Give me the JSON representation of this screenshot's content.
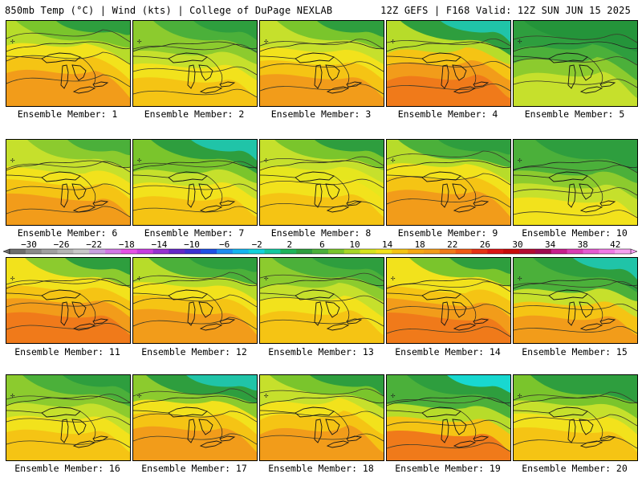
{
  "header": {
    "left": "850mb Temp (°C) | Wind (kts) | College of DuPage NEXLAB",
    "right": "12Z GEFS | F168 Valid: 12Z SUN JUN 15 2025"
  },
  "caption_prefix": "Ensemble Member:",
  "members": [
    {
      "label": "Ensemble Member: 1",
      "palette": [
        "#f29c1a",
        "#f5c414",
        "#f2e21c",
        "#b7dc2a",
        "#7ac52c",
        "#2e9e3e"
      ]
    },
    {
      "label": "Ensemble Member: 2",
      "palette": [
        "#f5c414",
        "#f2e21c",
        "#c6e02c",
        "#8ccb2e",
        "#4bb03a",
        "#2e9e3e"
      ]
    },
    {
      "label": "Ensemble Member: 3",
      "palette": [
        "#f29c1a",
        "#f5c414",
        "#f2e21c",
        "#c6e02c",
        "#7ac52c",
        "#2e9e3e"
      ]
    },
    {
      "label": "Ensemble Member: 4",
      "palette": [
        "#f07a1a",
        "#f29c1a",
        "#f5c414",
        "#b7dc2a",
        "#2e9e3e",
        "#20c4a8"
      ]
    },
    {
      "label": "Ensemble Member: 5",
      "palette": [
        "#c6e02c",
        "#8ccb2e",
        "#4bb03a",
        "#2e9e3e",
        "#24943a",
        "#24943a"
      ]
    },
    {
      "label": "Ensemble Member: 6",
      "palette": [
        "#f29c1a",
        "#f5c414",
        "#f2e21c",
        "#c6e02c",
        "#8ccb2e",
        "#4bb03a"
      ]
    },
    {
      "label": "Ensemble Member: 7",
      "palette": [
        "#f5c414",
        "#f2e21c",
        "#c6e02c",
        "#7ac52c",
        "#2e9e3e",
        "#20c4a8"
      ]
    },
    {
      "label": "Ensemble Member: 8",
      "palette": [
        "#f5c414",
        "#f2e21c",
        "#e6e61e",
        "#c6e02c",
        "#7ac52c",
        "#2e9e3e"
      ]
    },
    {
      "label": "Ensemble Member: 9",
      "palette": [
        "#f29c1a",
        "#f5c414",
        "#f2e21c",
        "#b7dc2a",
        "#4bb03a",
        "#2e9e3e"
      ]
    },
    {
      "label": "Ensemble Member: 10",
      "palette": [
        "#f2e21c",
        "#c6e02c",
        "#8ccb2e",
        "#4bb03a",
        "#2e9e3e",
        "#2e9e3e"
      ]
    },
    {
      "label": "Ensemble Member: 11",
      "palette": [
        "#f07a1a",
        "#f29c1a",
        "#f5c414",
        "#f2e21c",
        "#8ccb2e",
        "#2e9e3e"
      ]
    },
    {
      "label": "Ensemble Member: 12",
      "palette": [
        "#f29c1a",
        "#f5c414",
        "#f2e21c",
        "#b7dc2a",
        "#4bb03a",
        "#2e9e3e"
      ]
    },
    {
      "label": "Ensemble Member: 13",
      "palette": [
        "#f5c414",
        "#f2e21c",
        "#c6e02c",
        "#8ccb2e",
        "#4bb03a",
        "#2e9e3e"
      ]
    },
    {
      "label": "Ensemble Member: 14",
      "palette": [
        "#f07a1a",
        "#f29c1a",
        "#f5c414",
        "#f2e21c",
        "#7ac52c",
        "#2e9e3e"
      ]
    },
    {
      "label": "Ensemble Member: 15",
      "palette": [
        "#f29c1a",
        "#f5c414",
        "#c6e02c",
        "#4bb03a",
        "#2e9e3e",
        "#20c4a8"
      ]
    },
    {
      "label": "Ensemble Member: 16",
      "palette": [
        "#f5c414",
        "#f2e21c",
        "#c6e02c",
        "#8ccb2e",
        "#4bb03a",
        "#2e9e3e"
      ]
    },
    {
      "label": "Ensemble Member: 17",
      "palette": [
        "#f29c1a",
        "#f5c414",
        "#f2e21c",
        "#8ccb2e",
        "#2e9e3e",
        "#20c4a8"
      ]
    },
    {
      "label": "Ensemble Member: 18",
      "palette": [
        "#f29c1a",
        "#f5c414",
        "#f2e21c",
        "#c6e02c",
        "#7ac52c",
        "#2e9e3e"
      ]
    },
    {
      "label": "Ensemble Member: 19",
      "palette": [
        "#f07a1a",
        "#f5c414",
        "#b7dc2a",
        "#4bb03a",
        "#2e9e3e",
        "#18d8d0"
      ]
    },
    {
      "label": "Ensemble Member: 20",
      "palette": [
        "#f5c414",
        "#f2e21c",
        "#c6e02c",
        "#7ac52c",
        "#2e9e3e",
        "#2e9e3e"
      ]
    }
  ],
  "colorbar": {
    "labels": [
      "-30",
      "-26",
      "-22",
      "-18",
      "-14",
      "-10",
      "-6",
      "-2",
      "2",
      "6",
      "10",
      "14",
      "18",
      "22",
      "26",
      "30",
      "34",
      "38",
      "42"
    ],
    "colors": [
      "#6e6e6e",
      "#8a8a8a",
      "#a0a0a0",
      "#b4b4b4",
      "#c8c8c8",
      "#c8a0e0",
      "#d278e6",
      "#e650e6",
      "#c83ce0",
      "#9632d2",
      "#6428c8",
      "#3c32d2",
      "#1e50e6",
      "#1e8cf0",
      "#14b4f0",
      "#14d2dc",
      "#14c8a0",
      "#1eb45a",
      "#2e9e3e",
      "#4bb03a",
      "#7ac52c",
      "#a8d628",
      "#d6e41e",
      "#f2e21c",
      "#f5c414",
      "#f5a814",
      "#f29c1a",
      "#f07a1a",
      "#f05a14",
      "#e63214",
      "#dc1414",
      "#c80a0a",
      "#b40a32",
      "#a00a50",
      "#c81e8c",
      "#dc3cb4",
      "#e65ad2",
      "#f07ae6",
      "#f5a0f0"
    ]
  }
}
